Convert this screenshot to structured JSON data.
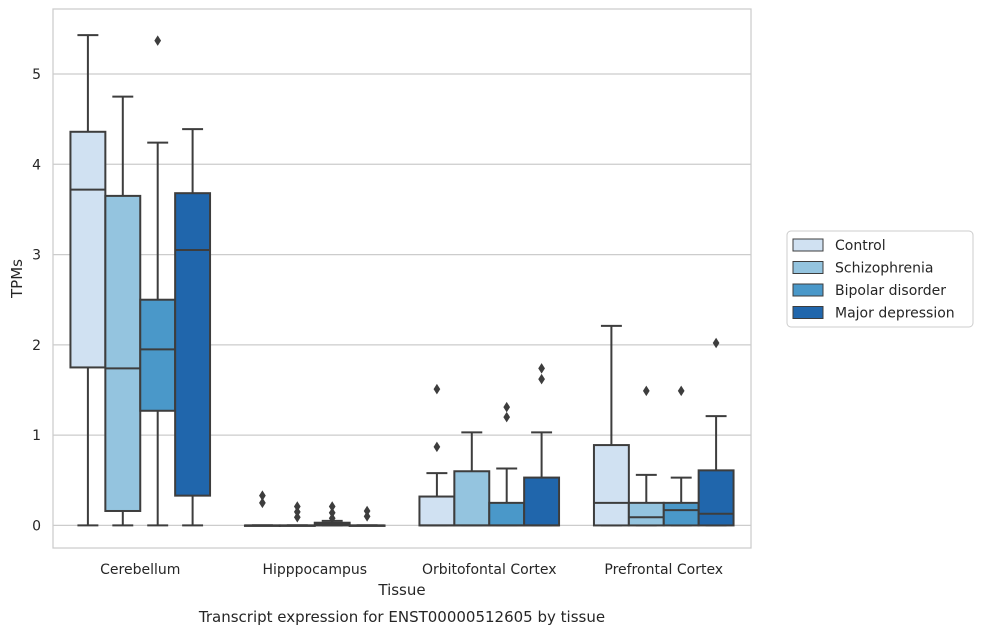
{
  "chart_data": {
    "type": "box",
    "title": "",
    "caption": "Transcript expression for ENST00000512605 by tissue",
    "xlabel": "Tissue",
    "ylabel": "TPMs",
    "ylim": [
      -0.25,
      5.72
    ],
    "yticks": [
      0,
      1,
      2,
      3,
      4,
      5
    ],
    "grid": "horizontal",
    "legend_position": "right",
    "categories": [
      "Cerebellum",
      "Hipppocampus",
      "Orbitofontal Cortex",
      "Prefrontal Cortex"
    ],
    "series": [
      {
        "name": "Control",
        "color": "#d0e1f2",
        "boxes": [
          {
            "whislo": 0,
            "q1": 1.75,
            "med": 3.72,
            "q3": 4.36,
            "whishi": 5.43,
            "fliers": []
          },
          {
            "whislo": 0,
            "q1": 0,
            "med": 0,
            "q3": 0,
            "whishi": 0,
            "fliers": [
              0.25,
              0.33
            ]
          },
          {
            "whislo": 0,
            "q1": 0,
            "med": 0,
            "q3": 0.32,
            "whishi": 0.58,
            "fliers": [
              0.87,
              1.51
            ]
          },
          {
            "whislo": 0,
            "q1": 0,
            "med": 0.25,
            "q3": 0.89,
            "whishi": 2.21,
            "fliers": []
          }
        ]
      },
      {
        "name": "Schizophrenia",
        "color": "#94c4df",
        "boxes": [
          {
            "whislo": 0,
            "q1": 0.16,
            "med": 1.74,
            "q3": 3.65,
            "whishi": 4.75,
            "fliers": []
          },
          {
            "whislo": 0,
            "q1": 0,
            "med": 0,
            "q3": 0,
            "whishi": 0,
            "fliers": [
              0.09,
              0.15,
              0.21
            ]
          },
          {
            "whislo": 0,
            "q1": 0,
            "med": 0,
            "q3": 0.6,
            "whishi": 1.03,
            "fliers": []
          },
          {
            "whislo": 0,
            "q1": 0,
            "med": 0.09,
            "q3": 0.25,
            "whishi": 0.56,
            "fliers": [
              1.49
            ]
          }
        ]
      },
      {
        "name": "Bipolar disorder",
        "color": "#4a98c9",
        "boxes": [
          {
            "whislo": 0,
            "q1": 1.27,
            "med": 1.95,
            "q3": 2.5,
            "whishi": 4.24,
            "fliers": [
              5.37
            ]
          },
          {
            "whislo": 0,
            "q1": 0,
            "med": 0.01,
            "q3": 0.03,
            "whishi": 0.05,
            "fliers": [
              0.08,
              0.14,
              0.21
            ]
          },
          {
            "whislo": 0,
            "q1": 0,
            "med": 0,
            "q3": 0.25,
            "whishi": 0.63,
            "fliers": [
              1.2,
              1.31
            ]
          },
          {
            "whislo": 0,
            "q1": 0,
            "med": 0.17,
            "q3": 0.25,
            "whishi": 0.53,
            "fliers": [
              1.49
            ]
          }
        ]
      },
      {
        "name": "Major depression",
        "color": "#2066ac",
        "boxes": [
          {
            "whislo": 0,
            "q1": 0.33,
            "med": 3.05,
            "q3": 3.68,
            "whishi": 4.39,
            "fliers": []
          },
          {
            "whislo": 0,
            "q1": 0,
            "med": 0,
            "q3": 0,
            "whishi": 0,
            "fliers": [
              0.1,
              0.16
            ]
          },
          {
            "whislo": 0,
            "q1": 0,
            "med": 0,
            "q3": 0.53,
            "whishi": 1.03,
            "fliers": [
              1.62,
              1.74
            ]
          },
          {
            "whislo": 0,
            "q1": 0,
            "med": 0.13,
            "q3": 0.61,
            "whishi": 1.21,
            "fliers": [
              2.02
            ]
          }
        ]
      }
    ]
  }
}
